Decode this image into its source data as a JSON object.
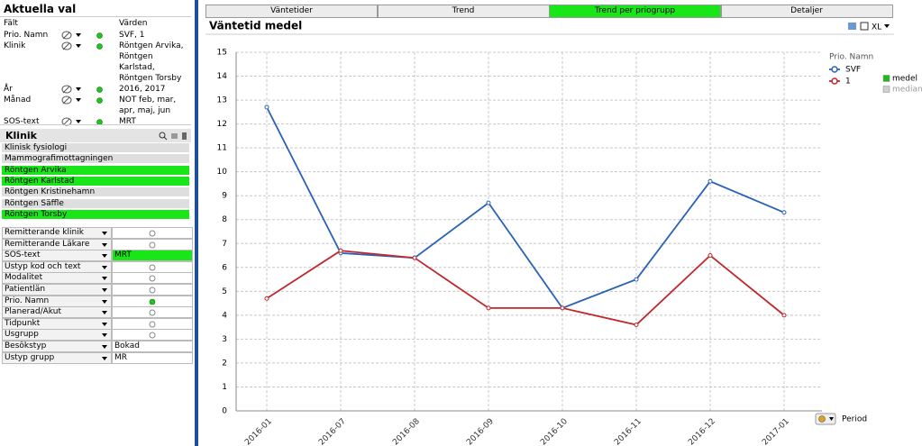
{
  "current_selections": {
    "title": "Aktuella val",
    "columns": [
      "Fält",
      "Värden"
    ],
    "rows": [
      {
        "field": "Prio. Namn",
        "value": "SVF, 1"
      },
      {
        "field": "Klinik",
        "value": "Röntgen Arvika, Röntgen Karlstad, Röntgen Torsby"
      },
      {
        "field": "År",
        "value": "2016, 2017"
      },
      {
        "field": "Månad",
        "value": "NOT feb, mar, apr, maj, jun"
      },
      {
        "field": "SOS-text",
        "value": "MRT"
      }
    ]
  },
  "listbox": {
    "title": "Klinik",
    "items": [
      {
        "label": "Klinisk fysiologi",
        "selected": false
      },
      {
        "label": "Mammografimottagningen",
        "selected": false
      },
      {
        "label": "Röntgen Arvika",
        "selected": true
      },
      {
        "label": "Röntgen Karlstad",
        "selected": true
      },
      {
        "label": "Röntgen Kristinehamn",
        "selected": false
      },
      {
        "label": "Röntgen Säffle",
        "selected": false
      },
      {
        "label": "Röntgen Torsby",
        "selected": true
      }
    ]
  },
  "multibox": {
    "rows": [
      {
        "field": "Remitterande klinik",
        "indicator": "gray"
      },
      {
        "field": "Remitterande Läkare",
        "indicator": "gray"
      },
      {
        "field": "SOS-text",
        "value": "MRT",
        "selected": true
      },
      {
        "field": "Ustyp kod och text",
        "indicator": "gray"
      },
      {
        "field": "Modalitet",
        "indicator": "gray"
      },
      {
        "field": "Patientlän",
        "indicator": "gray"
      },
      {
        "field": "Prio. Namn",
        "indicator": "green"
      },
      {
        "field": "Planerad/Akut",
        "indicator": "gray"
      },
      {
        "field": "Tidpunkt",
        "indicator": "gray"
      },
      {
        "field": "Usgrupp",
        "indicator": "gray"
      },
      {
        "field": "Besökstyp",
        "value": "Bokad",
        "selected": false
      },
      {
        "field": "Ustyp grupp",
        "value": "MR",
        "selected": false
      }
    ]
  },
  "tabs": [
    {
      "label": "Väntetider",
      "active": false
    },
    {
      "label": "Trend",
      "active": false
    },
    {
      "label": "Trend per priogrupp",
      "active": true
    },
    {
      "label": "Detaljer",
      "active": false
    }
  ],
  "chart_data": {
    "type": "line",
    "title": "Väntetid medel",
    "export_button": "XL",
    "x_label": "Period",
    "legend_title": "Prio. Namn",
    "categories": [
      "2016-01",
      "2016-07",
      "2016-08",
      "2016-09",
      "2016-10",
      "2016-11",
      "2016-12",
      "2017-01"
    ],
    "series": [
      {
        "name": "SVF",
        "color": "#2a62b8",
        "values": [
          12.7,
          6.6,
          6.4,
          8.7,
          4.3,
          5.5,
          9.6,
          8.3
        ]
      },
      {
        "name": "1",
        "color": "#c0282d",
        "values": [
          4.7,
          6.7,
          6.4,
          4.3,
          4.3,
          3.6,
          6.5,
          4.0
        ]
      }
    ],
    "measures": [
      {
        "name": "medel",
        "color": "#22b822",
        "active": true
      },
      {
        "name": "median",
        "color": "#cfcfcf",
        "active": false
      }
    ],
    "ylim": [
      0,
      15
    ],
    "yticks": [
      0,
      1,
      2,
      3,
      4,
      5,
      6,
      7,
      8,
      9,
      10,
      11,
      12,
      13,
      14,
      15
    ],
    "grid": true
  }
}
